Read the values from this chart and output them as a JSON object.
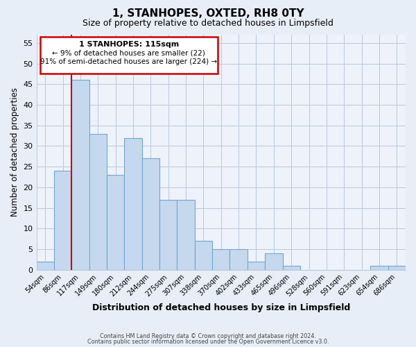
{
  "title": "1, STANHOPES, OXTED, RH8 0TY",
  "subtitle": "Size of property relative to detached houses in Limpsfield",
  "xlabel": "Distribution of detached houses by size in Limpsfield",
  "ylabel": "Number of detached properties",
  "bar_labels": [
    "54sqm",
    "86sqm",
    "117sqm",
    "149sqm",
    "180sqm",
    "212sqm",
    "244sqm",
    "275sqm",
    "307sqm",
    "338sqm",
    "370sqm",
    "402sqm",
    "433sqm",
    "465sqm",
    "496sqm",
    "528sqm",
    "560sqm",
    "591sqm",
    "623sqm",
    "654sqm",
    "686sqm"
  ],
  "bar_values": [
    2,
    24,
    46,
    33,
    23,
    32,
    27,
    17,
    17,
    7,
    5,
    5,
    2,
    4,
    1,
    0,
    0,
    0,
    0,
    1,
    1
  ],
  "bar_color": "#c5d8ed",
  "bar_edge_color": "#6fa8d0",
  "highlight_bar_index": 2,
  "highlight_color": "#cc0000",
  "annotation_title": "1 STANHOPES: 115sqm",
  "annotation_line1": "← 9% of detached houses are smaller (22)",
  "annotation_line2": "91% of semi-detached houses are larger (224) →",
  "ylim": [
    0,
    57
  ],
  "yticks": [
    0,
    5,
    10,
    15,
    20,
    25,
    30,
    35,
    40,
    45,
    50,
    55
  ],
  "footer1": "Contains HM Land Registry data © Crown copyright and database right 2024.",
  "footer2": "Contains public sector information licensed under the Open Government Licence v3.0.",
  "bg_color": "#e8eef8",
  "plot_bg_color": "#eef2fa"
}
